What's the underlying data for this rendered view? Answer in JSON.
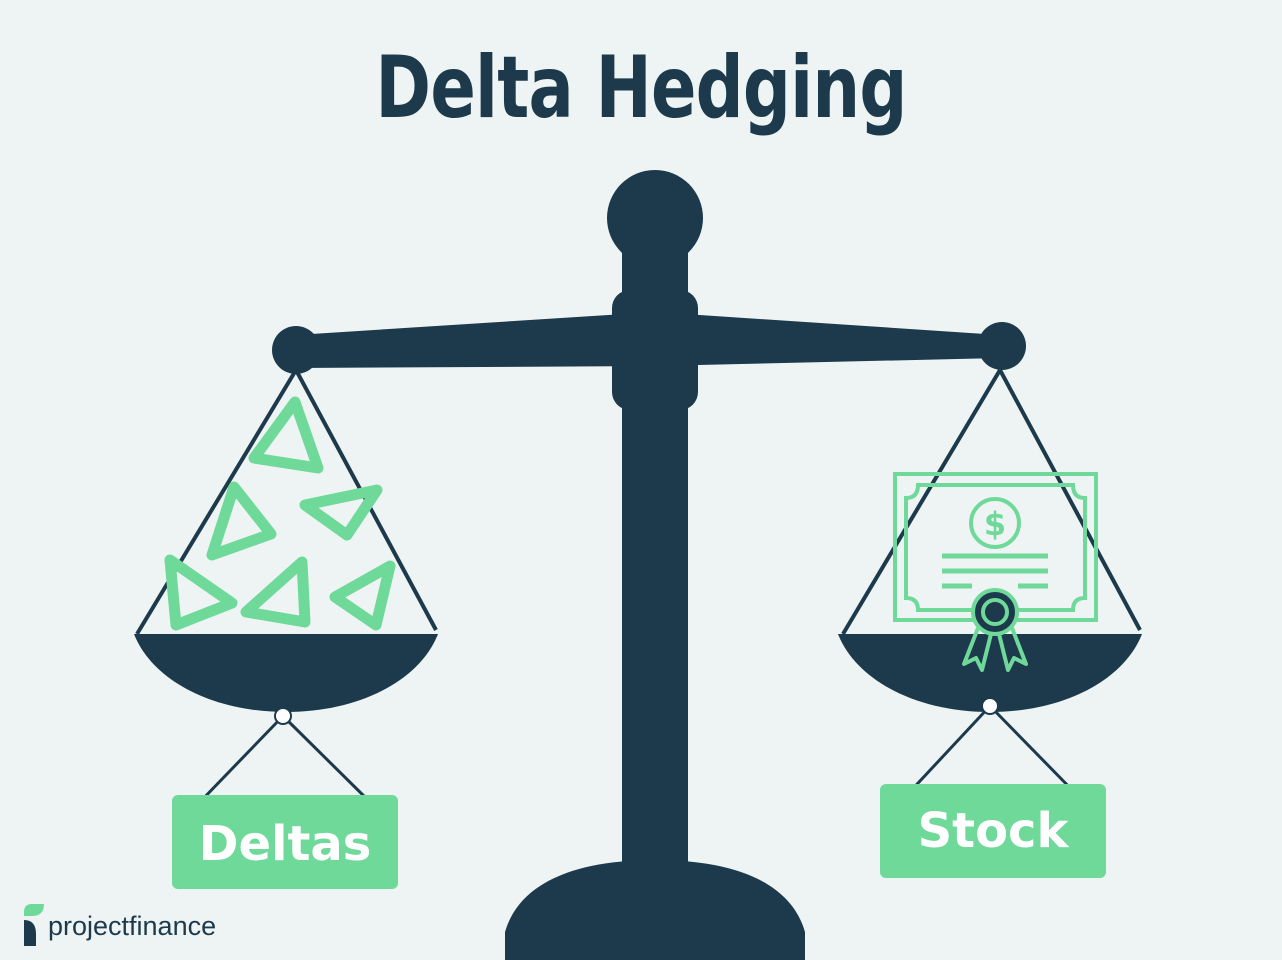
{
  "title": "Delta Hedging",
  "left_pan": {
    "label": "Deltas"
  },
  "right_pan": {
    "label": "Stock"
  },
  "brand": {
    "name": "projectfinance",
    "icon": "project-finance-logo-icon"
  },
  "icons": {
    "currency_symbol": "$"
  },
  "colors": {
    "navy": "#1c3a4c",
    "green": "#6fd99a",
    "background": "#eef4f4"
  }
}
